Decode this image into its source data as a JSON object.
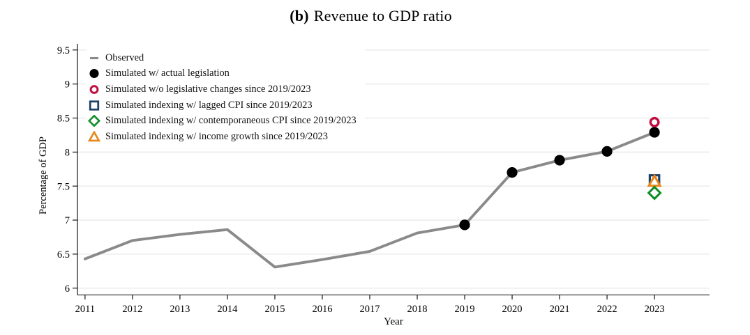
{
  "title": {
    "prefix": "(b)",
    "text": "Revenue to GDP ratio"
  },
  "axes": {
    "x_label": "Year",
    "y_label": "Percentage of GDP",
    "y_ticks": [
      {
        "value": 9.5,
        "label": "9.5"
      },
      {
        "value": 9,
        "label": "9"
      },
      {
        "value": 8.5,
        "label": "8.5"
      },
      {
        "value": 8,
        "label": "8"
      },
      {
        "value": 7.5,
        "label": "7.5"
      },
      {
        "value": 7,
        "label": "7"
      },
      {
        "value": 6.5,
        "label": "6.5"
      },
      {
        "value": 6,
        "label": "6"
      }
    ],
    "x_ticks": [
      {
        "value": 2011,
        "label": "2011"
      },
      {
        "value": 2012,
        "label": "2012"
      },
      {
        "value": 2013,
        "label": "2013"
      },
      {
        "value": 2014,
        "label": "2014"
      },
      {
        "value": 2015,
        "label": "2015"
      },
      {
        "value": 2016,
        "label": "2016"
      },
      {
        "value": 2017,
        "label": "2017"
      },
      {
        "value": 2018,
        "label": "2018"
      },
      {
        "value": 2019,
        "label": "2019"
      },
      {
        "value": 2020,
        "label": "2020"
      },
      {
        "value": 2021,
        "label": "2021"
      },
      {
        "value": 2022,
        "label": "2022"
      },
      {
        "value": 2023,
        "label": "2023"
      }
    ]
  },
  "colors": {
    "observed_line": "#8a8a8a",
    "actual_legislation": "#000000",
    "no_legislative_changes": "#c11040",
    "lagged_cpi": "#1d4266",
    "contemporaneous_cpi": "#0e8c26",
    "income_growth": "#e6871c",
    "gridline": "#e8e8e8",
    "axis": "#000000"
  },
  "legend": {
    "items": [
      {
        "id": "observed",
        "marker": "dash",
        "color": "#8a8a8a",
        "label": "Observed"
      },
      {
        "id": "actual_legislation",
        "marker": "circle",
        "color": "#000000",
        "label": "Simulated w/ actual legislation"
      },
      {
        "id": "no_legislative_changes",
        "marker": "circle-open",
        "color": "#c11040",
        "label": "Simulated w/o legislative changes since 2019/2023"
      },
      {
        "id": "lagged_cpi",
        "marker": "square-open",
        "color": "#1d4266",
        "label": "Simulated indexing w/ lagged CPI since 2019/2023"
      },
      {
        "id": "contemporaneous_cpi",
        "marker": "diamond-open",
        "color": "#0e8c26",
        "label": "Simulated indexing w/ contemporaneous CPI since 2019/2023"
      },
      {
        "id": "income_growth",
        "marker": "triangle-open",
        "color": "#e6871c",
        "label": "Simulated indexing w/ income growth since 2019/2023"
      }
    ]
  },
  "chart_data": {
    "type": "line",
    "title": "(b) Revenue to GDP ratio",
    "xlabel": "Year",
    "ylabel": "Percentage of GDP",
    "xlim": [
      2010.84,
      2024.16
    ],
    "ylim": [
      5.9,
      9.59
    ],
    "grid": "horizontal-only",
    "legend_position": "top-left-inside",
    "x": [
      2011,
      2012,
      2013,
      2014,
      2015,
      2016,
      2017,
      2018,
      2019,
      2020,
      2021,
      2022,
      2023
    ],
    "series": [
      {
        "id": "observed",
        "name": "Observed",
        "type": "line",
        "color": "#8a8a8a",
        "values": [
          6.43,
          6.7,
          6.79,
          6.86,
          6.31,
          6.42,
          6.54,
          6.81,
          6.93,
          7.7,
          7.88,
          8.01,
          8.29
        ]
      },
      {
        "id": "actual_legislation",
        "name": "Simulated w/ actual legislation",
        "type": "scatter",
        "marker": "circle",
        "color": "#000000",
        "points": [
          [
            2019,
            6.93
          ],
          [
            2020,
            7.7
          ],
          [
            2021,
            7.88
          ],
          [
            2022,
            8.01
          ],
          [
            2023,
            8.29
          ]
        ]
      },
      {
        "id": "lagged_cpi",
        "name": "Simulated indexing w/ lagged CPI since 2019/2023",
        "type": "scatter",
        "marker": "square-open",
        "color": "#1d4266",
        "points": [
          [
            2023,
            7.59
          ]
        ]
      },
      {
        "id": "income_growth",
        "name": "Simulated indexing w/ income growth since 2019/2023",
        "type": "scatter",
        "marker": "triangle-open",
        "color": "#e6871c",
        "points": [
          [
            2023,
            7.57
          ]
        ]
      },
      {
        "id": "contemporaneous_cpi",
        "name": "Simulated indexing w/ contemporaneous CPI since 2019/2023",
        "type": "scatter",
        "marker": "diamond-open",
        "color": "#0e8c26",
        "points": [
          [
            2023,
            7.4
          ]
        ]
      },
      {
        "id": "no_legislative_changes",
        "name": "Simulated w/o legislative changes since 2019/2023",
        "type": "scatter",
        "marker": "circle-open",
        "color": "#c11040",
        "points": [
          [
            2023,
            8.44
          ]
        ]
      }
    ]
  }
}
